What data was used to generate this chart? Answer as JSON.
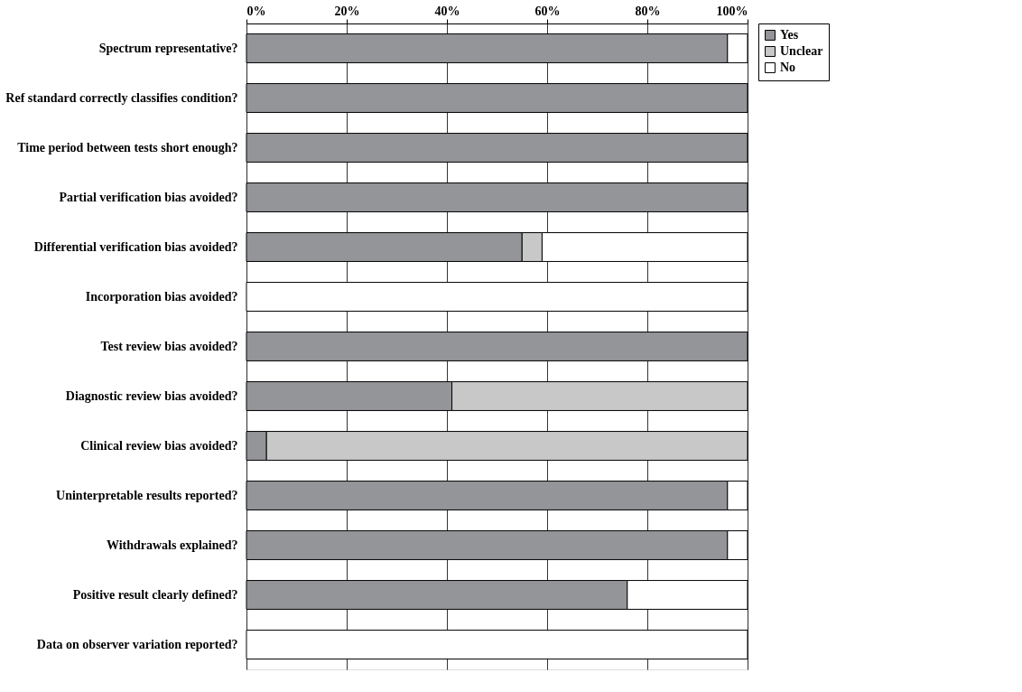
{
  "chart_data": {
    "type": "bar",
    "orientation": "horizontal",
    "stacked": true,
    "categories": [
      "Spectrum representative?",
      "Ref standard correctly classifies condition?",
      "Time period between tests short enough?",
      "Partial verification bias avoided?",
      "Differential verification bias avoided?",
      "Incorporation bias avoided?",
      "Test review bias avoided?",
      "Diagnostic review bias avoided?",
      "Clinical review bias avoided?",
      "Uninterpretable results reported?",
      "Withdrawals explained?",
      "Positive result clearly defined?",
      "Data on observer variation reported?"
    ],
    "series": [
      {
        "name": "Yes",
        "color": "#939598",
        "values": [
          96,
          100,
          100,
          100,
          55,
          0,
          100,
          41,
          4,
          96,
          96,
          76,
          0
        ]
      },
      {
        "name": "Unclear",
        "color": "#c8c8c8",
        "values": [
          0,
          0,
          0,
          0,
          4,
          0,
          0,
          59,
          96,
          0,
          0,
          0,
          0
        ]
      },
      {
        "name": "No",
        "color": "#ffffff",
        "values": [
          4,
          0,
          0,
          0,
          41,
          100,
          0,
          0,
          0,
          4,
          4,
          24,
          100
        ]
      }
    ],
    "xlim": [
      0,
      100
    ],
    "xticks": [
      {
        "value": 0,
        "label": "0%"
      },
      {
        "value": 20,
        "label": "20%"
      },
      {
        "value": 40,
        "label": "40%"
      },
      {
        "value": 60,
        "label": "60%"
      },
      {
        "value": 80,
        "label": "80%"
      },
      {
        "value": 100,
        "label": "100%"
      }
    ],
    "grid": "x",
    "legend": "right"
  }
}
